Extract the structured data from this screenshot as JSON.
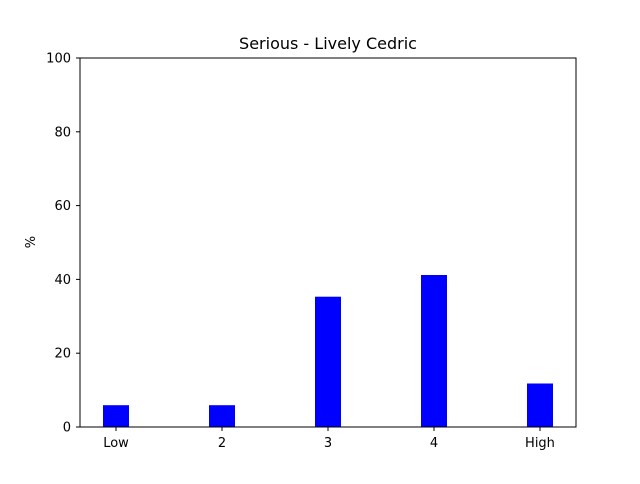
{
  "chart_data": {
    "type": "bar",
    "title": "Serious - Lively Cedric",
    "xlabel": "",
    "ylabel": "%",
    "categories": [
      "Low",
      "2",
      "3",
      "4",
      "High"
    ],
    "values": [
      5.9,
      5.9,
      35.3,
      41.2,
      11.8
    ],
    "ylim": [
      0,
      100
    ],
    "yticks": [
      0,
      20,
      40,
      60,
      80,
      100
    ],
    "bar_color": "#0000ff",
    "grid": false,
    "legend": "none"
  }
}
